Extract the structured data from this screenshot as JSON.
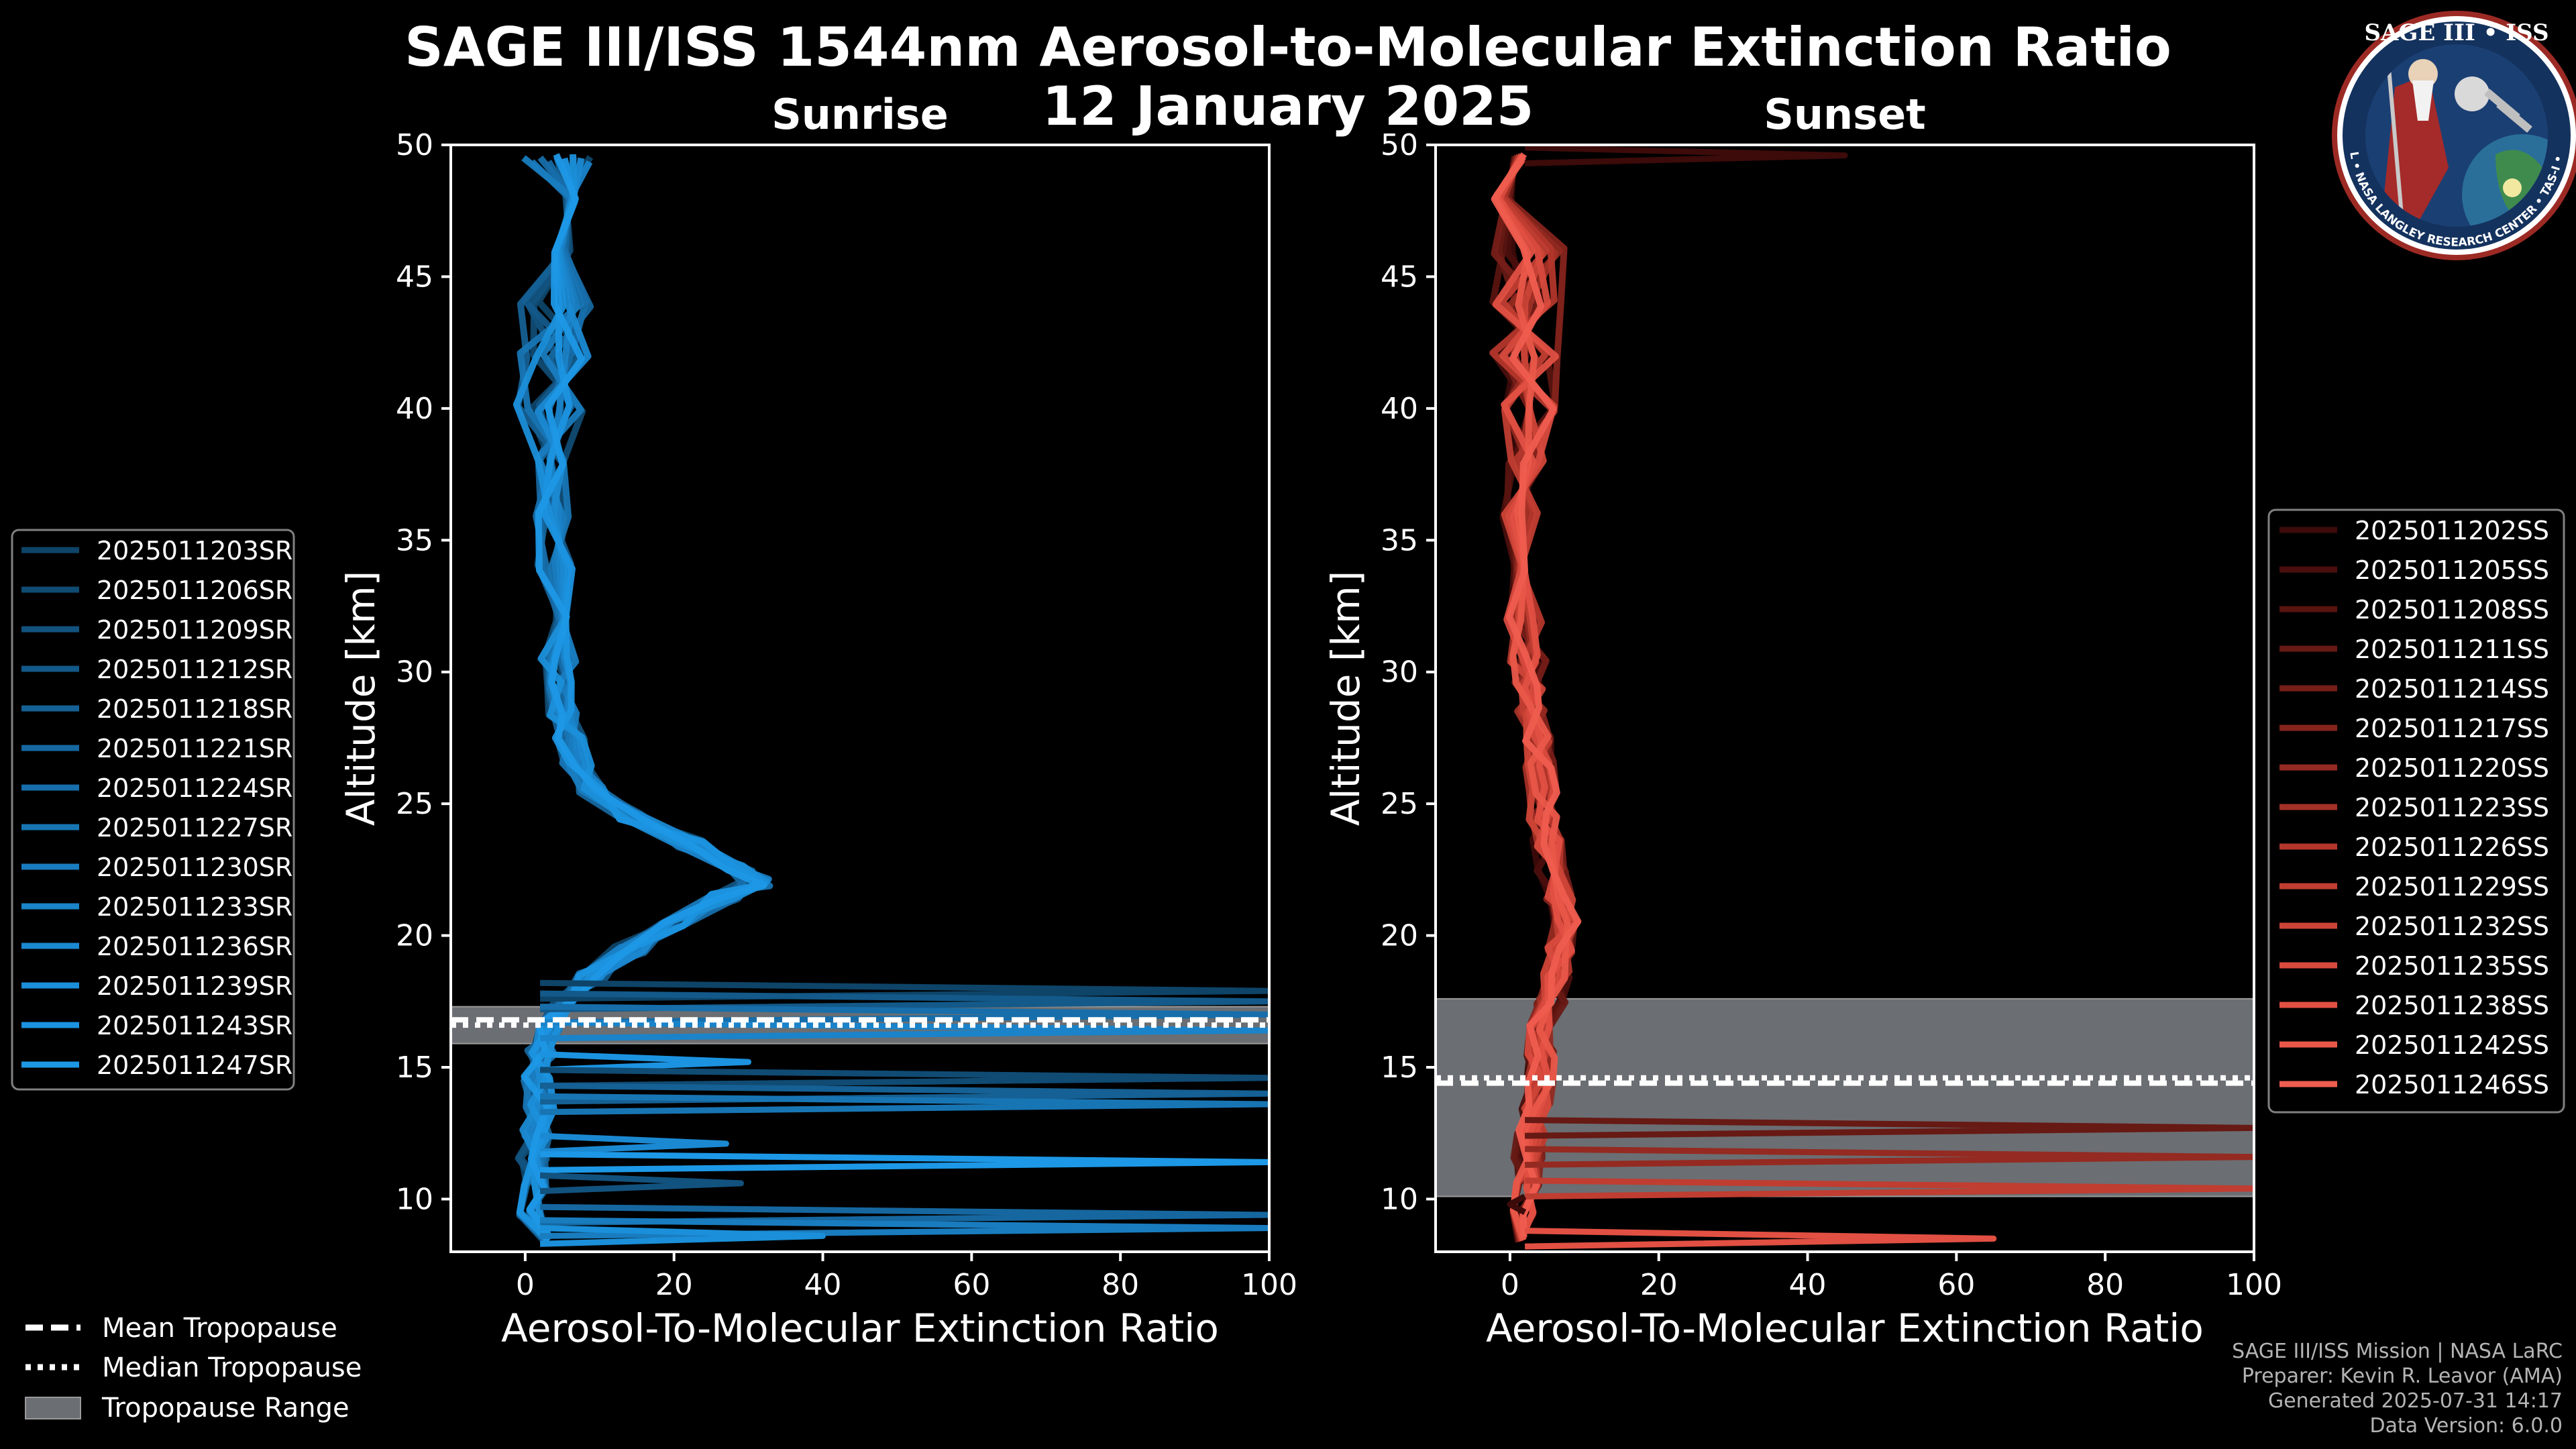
{
  "title": "SAGE III/ISS 1544nm Aerosol-to-Molecular Extinction Ratio",
  "subtitle": "12 January 2025",
  "colors": {
    "sunrise": "#1c8ad4",
    "sunset": "#e8564a",
    "tropopause_band": "#6b6e72",
    "grid_frame": "#ffffff"
  },
  "footer": {
    "line1": "SAGE III/ISS Mission | NASA LaRC",
    "line2": "Preparer: Kevin R. Leavor (AMA)",
    "line3": "Generated 2025-07-31 14:17",
    "line4": "Data Version: 6.0.0"
  },
  "logo": {
    "title": "SAGE III • ISS",
    "ring_text": "BALL • NASA LANGLEY RESEARCH CENTER • TAS-I • ESA"
  },
  "chart_data": [
    {
      "type": "line",
      "panel": "sunrise",
      "title": "Sunrise",
      "xlabel": "Aerosol-To-Molecular Extinction Ratio",
      "ylabel": "Altitude [km]",
      "xlim": [
        -10,
        100
      ],
      "ylim": [
        8,
        50
      ],
      "xticks": [
        0,
        20,
        40,
        60,
        80,
        100
      ],
      "yticks": [
        10,
        15,
        20,
        25,
        30,
        35,
        40,
        45,
        50
      ],
      "tropopause": {
        "mean": 16.8,
        "median": 16.6,
        "range": [
          15.9,
          17.3
        ]
      },
      "altitude_km": [
        8.5,
        9.5,
        10.5,
        11.5,
        12.5,
        13.5,
        14.5,
        15.5,
        16.5,
        17.5,
        18.5,
        19.5,
        20.5,
        21.5,
        22.0,
        22.5,
        23.5,
        24.5,
        25.5,
        26.5,
        27.5,
        28.5,
        29.5,
        30.5,
        32,
        34,
        36,
        38,
        40,
        42,
        44,
        46,
        48,
        49.5
      ],
      "reference_profile": [
        2,
        1,
        1.5,
        1,
        1.5,
        2,
        1.5,
        2,
        3,
        5,
        9,
        14,
        20,
        27,
        31,
        29,
        22,
        14,
        9,
        7,
        6,
        5,
        5,
        4.5,
        4.5,
        4,
        3.5,
        3.5,
        3.5,
        4,
        4,
        4,
        4,
        4
      ],
      "series": [
        {
          "name": "2025011203SR",
          "color": "#0e4468"
        },
        {
          "name": "2025011206SR",
          "color": "#104b73"
        },
        {
          "name": "2025011209SR",
          "color": "#12527e"
        },
        {
          "name": "2025011212SR",
          "color": "#135989"
        },
        {
          "name": "2025011218SR",
          "color": "#156094"
        },
        {
          "name": "2025011221SR",
          "color": "#16679f"
        },
        {
          "name": "2025011224SR",
          "color": "#176eaa"
        },
        {
          "name": "2025011227SR",
          "color": "#1875b4"
        },
        {
          "name": "2025011230SR",
          "color": "#197cbf"
        },
        {
          "name": "2025011233SR",
          "color": "#1a83c9"
        },
        {
          "name": "2025011236SR",
          "color": "#1b89d2"
        },
        {
          "name": "2025011239SR",
          "color": "#1b8fd9"
        },
        {
          "name": "2025011243SR",
          "color": "#1c93e0"
        },
        {
          "name": "2025011247SR",
          "color": "#1d98e6"
        }
      ],
      "spikes": [
        {
          "alt": 17.9,
          "value": 100
        },
        {
          "alt": 17.5,
          "value": 100
        },
        {
          "alt": 17.0,
          "value": 100
        },
        {
          "alt": 16.4,
          "value": 100
        },
        {
          "alt": 15.2,
          "value": 30
        },
        {
          "alt": 14.6,
          "value": 100
        },
        {
          "alt": 14.0,
          "value": 100
        },
        {
          "alt": 13.6,
          "value": 100
        },
        {
          "alt": 12.1,
          "value": 27
        },
        {
          "alt": 11.4,
          "value": 100
        },
        {
          "alt": 10.6,
          "value": 29
        },
        {
          "alt": 9.4,
          "value": 100
        },
        {
          "alt": 8.9,
          "value": 100
        },
        {
          "alt": 8.6,
          "value": 40
        }
      ],
      "legend_location": "left"
    },
    {
      "type": "line",
      "panel": "sunset",
      "title": "Sunset",
      "xlabel": "Aerosol-To-Molecular Extinction Ratio",
      "ylabel": "Altitude [km]",
      "xlim": [
        -10,
        100
      ],
      "ylim": [
        8,
        50
      ],
      "xticks": [
        0,
        20,
        40,
        60,
        80,
        100
      ],
      "yticks": [
        10,
        15,
        20,
        25,
        30,
        35,
        40,
        45,
        50
      ],
      "tropopause": {
        "mean": 14.4,
        "median": 14.6,
        "range": [
          10.1,
          17.6
        ]
      },
      "altitude_km": [
        8.5,
        9.5,
        10.5,
        11.5,
        12.5,
        13.5,
        14.5,
        15.5,
        16.5,
        17.5,
        18.5,
        19.5,
        20.5,
        21.5,
        22.5,
        23.5,
        24.5,
        25.5,
        26.5,
        27.5,
        28.5,
        29.5,
        30.5,
        32,
        34,
        36,
        38,
        40,
        42,
        44,
        46,
        48,
        49.5
      ],
      "reference_profile": [
        3,
        2,
        2,
        2.5,
        3,
        3.5,
        4,
        4,
        4.5,
        5.5,
        6.5,
        7,
        7.5,
        6.5,
        5.5,
        5,
        4.5,
        4.5,
        4,
        3.5,
        3,
        2.5,
        2.5,
        2,
        1.5,
        1.5,
        2,
        2,
        2,
        2.5,
        2.5,
        2.5,
        3
      ],
      "series": [
        {
          "name": "2025011202SS",
          "color": "#3c0b0a"
        },
        {
          "name": "2025011205SS",
          "color": "#4a0f0d"
        },
        {
          "name": "2025011208SS",
          "color": "#581410"
        },
        {
          "name": "2025011211SS",
          "color": "#671914"
        },
        {
          "name": "2025011214SS",
          "color": "#761e18"
        },
        {
          "name": "2025011217SS",
          "color": "#85241c"
        },
        {
          "name": "2025011220SS",
          "color": "#942a21"
        },
        {
          "name": "2025011223SS",
          "color": "#a33026"
        },
        {
          "name": "2025011226SS",
          "color": "#b2362b"
        },
        {
          "name": "2025011229SS",
          "color": "#c03d31"
        },
        {
          "name": "2025011232SS",
          "color": "#cc4437"
        },
        {
          "name": "2025011235SS",
          "color": "#d74a3d"
        },
        {
          "name": "2025011238SS",
          "color": "#e15043"
        },
        {
          "name": "2025011242SS",
          "color": "#e95749"
        },
        {
          "name": "2025011246SS",
          "color": "#ef5d4f"
        }
      ],
      "spikes": [
        {
          "alt": 49.6,
          "value": 45
        },
        {
          "alt": 12.7,
          "value": 100
        },
        {
          "alt": 11.6,
          "value": 100
        },
        {
          "alt": 10.4,
          "value": 100
        },
        {
          "alt": 8.5,
          "value": 65
        },
        {
          "alt": 9.8,
          "value": 0
        }
      ],
      "legend_location": "right"
    }
  ],
  "tropopause_legend": {
    "mean": "Mean Tropopause",
    "median": "Median Tropopause",
    "range": "Tropopause Range"
  }
}
